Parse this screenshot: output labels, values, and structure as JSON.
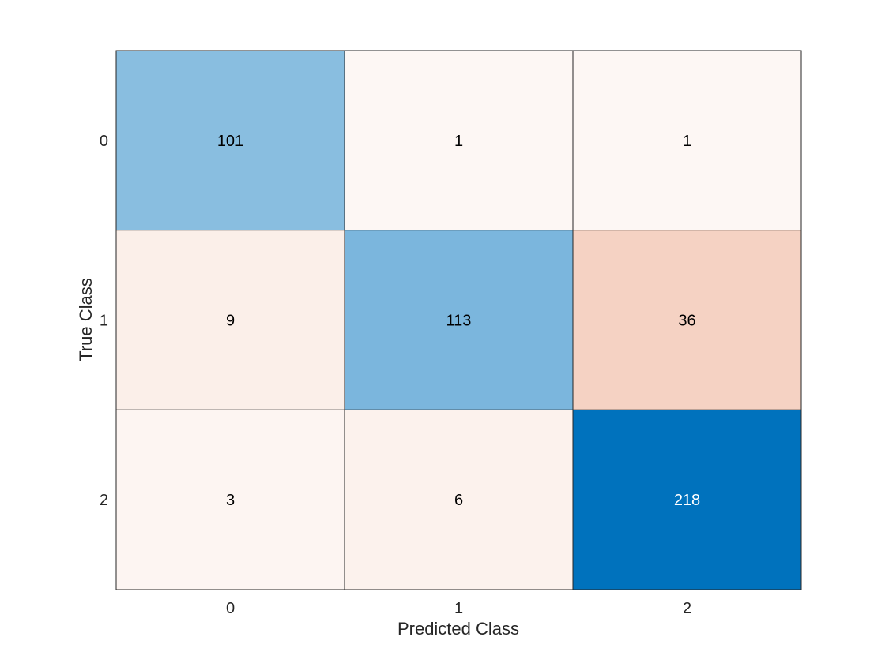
{
  "chart_data": {
    "type": "heatmap",
    "title": "",
    "xlabel": "Predicted Class",
    "ylabel": "True Class",
    "x_categories": [
      "0",
      "1",
      "2"
    ],
    "y_categories": [
      "0",
      "1",
      "2"
    ],
    "values": [
      [
        101,
        1,
        1
      ],
      [
        9,
        113,
        36
      ],
      [
        3,
        6,
        218
      ]
    ],
    "colors": {
      "diagonal_max": "#0072bd",
      "diagonal_min": "#ffffff",
      "offdiagonal_max": "#d95319",
      "offdiagonal_min": "#ffffff",
      "cell_border": "#262626",
      "text_dark": "#000000",
      "text_light": "#ffffff"
    },
    "grid": false,
    "legend": "none"
  }
}
